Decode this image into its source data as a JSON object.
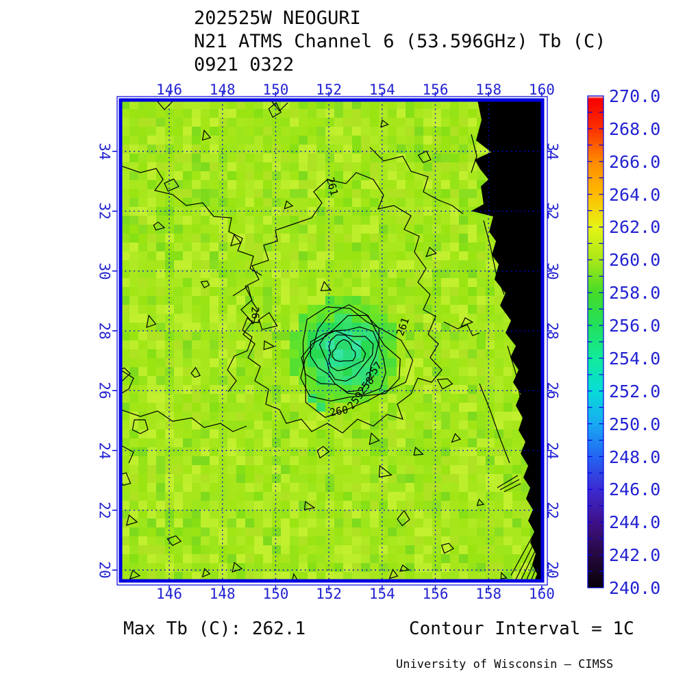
{
  "title": {
    "line1": "202525W NEOGURI",
    "line2": "N21 ATMS Channel 6 (53.596GHz) Tb (C)",
    "line3": "0921 0322"
  },
  "footer": {
    "max_tb": "Max Tb (C): 262.1",
    "contour_interval": "Contour Interval = 1C",
    "credit": "University of Wisconsin – CIMSS"
  },
  "axes": {
    "lon_ticks": [
      "146",
      "148",
      "150",
      "152",
      "154",
      "156",
      "158",
      "160"
    ],
    "lat_ticks": [
      "34",
      "32",
      "30",
      "28",
      "26",
      "24",
      "22",
      "20"
    ]
  },
  "colorbar": {
    "labels": [
      "270.0",
      "268.0",
      "266.0",
      "264.0",
      "262.0",
      "260.0",
      "258.0",
      "256.0",
      "254.0",
      "252.0",
      "250.0",
      "248.0",
      "246.0",
      "244.0",
      "242.0",
      "240.0"
    ]
  },
  "contour_labels": [
    {
      "text": "261",
      "lon": 152.0,
      "lat": 32.8,
      "rot": 75
    },
    {
      "text": "261",
      "lon": 149.1,
      "lat": 28.5,
      "rot": 90
    },
    {
      "text": "261",
      "lon": 154.9,
      "lat": 28.1,
      "rot": -70
    },
    {
      "text": "260",
      "lon": 152.4,
      "lat": 25.2,
      "rot": -10
    },
    {
      "text": "259",
      "lon": 153.1,
      "lat": 25.6,
      "rot": -52
    },
    {
      "text": "258",
      "lon": 153.5,
      "lat": 26.1,
      "rot": -52
    },
    {
      "text": "257",
      "lon": 153.8,
      "lat": 26.6,
      "rot": -52
    },
    {
      "text": "260",
      "lon": 157.9,
      "lat": 32.5,
      "rot": 90
    }
  ],
  "chart_data": {
    "type": "heatmap",
    "title": "202525W NEOGURI / N21 ATMS Channel 6 (53.596GHz) Tb (C) / 0921 0322",
    "x_axis": {
      "ticks": [
        146,
        148,
        150,
        152,
        154,
        156,
        158,
        160
      ],
      "range": [
        144.2,
        160.5
      ],
      "units": "degrees East",
      "grid": "dotted blue"
    },
    "y_axis": {
      "ticks": [
        34,
        32,
        30,
        28,
        26,
        24,
        22,
        20
      ],
      "range": [
        19.6,
        34.9
      ],
      "units": "degrees North",
      "grid": "dotted blue"
    },
    "colorbar": {
      "min": 240.0,
      "max": 270.0,
      "label_step": 2.0,
      "tick_step": 1.0,
      "units": "C",
      "position": "right",
      "scale_colors": {
        "240": "#060006",
        "242": "#26093f",
        "244": "#3f1188",
        "246": "#3c2ad2",
        "248": "#2365f2",
        "250": "#18aaf2",
        "252": "#08dcd8",
        "254": "#12eb9a",
        "256": "#22e05c",
        "258": "#44dc28",
        "260": "#aae818",
        "262": "#e6f414",
        "264": "#ffbb00",
        "266": "#fe8a00",
        "268": "#fb3000",
        "270": "#f80000"
      }
    },
    "max_tb_c": 262.1,
    "contour_interval_c": 1,
    "contour_label_values": [
      257,
      258,
      259,
      260,
      261
    ],
    "field_summary": {
      "background_tb_c": [
        259.5,
        261.5
      ],
      "storm_center": {
        "lon_e": 152.3,
        "lat_n": 27.4,
        "min_tb_c": 256.0,
        "note": "concentric 1C contours (257-261) around a cooler green/teal core"
      },
      "no_data_region": "black satellite swath edge east of ~157.5E at 35N widening to ~159.5E at 20N, jagged scan-edge boundary with dense contour scribbles near 160E/20N"
    },
    "accent_colors": {
      "axis_text": "#2222d2",
      "grid_and_frame": "#0000e0",
      "contours": "#000000"
    }
  }
}
